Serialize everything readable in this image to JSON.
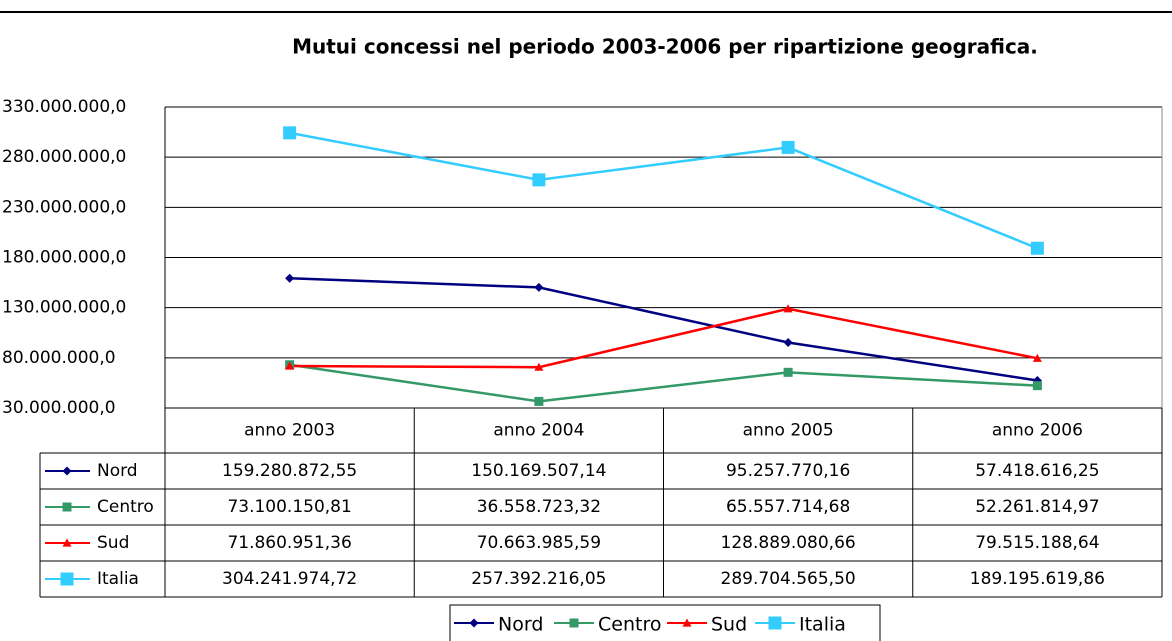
{
  "chart_data": {
    "type": "line",
    "title": "Mutui concessi nel periodo 2003-2006 per ripartizione geografica.",
    "categories": [
      "anno 2003",
      "anno 2004",
      "anno 2005",
      "anno 2006"
    ],
    "series": [
      {
        "name": "Nord",
        "color": "#000080",
        "marker": "diamond",
        "values": [
          159280872.55,
          150169507.14,
          95257770.16,
          57418616.25
        ],
        "value_labels": [
          "159.280.872,55",
          "150.169.507,14",
          "95.257.770,16",
          "57.418.616,25"
        ]
      },
      {
        "name": "Centro",
        "color": "#339966",
        "marker": "square",
        "values": [
          73100150.81,
          36558723.32,
          65557714.68,
          52261814.97
        ],
        "value_labels": [
          "73.100.150,81",
          "36.558.723,32",
          "65.557.714,68",
          "52.261.814,97"
        ]
      },
      {
        "name": "Sud",
        "color": "#ff0000",
        "marker": "triangle",
        "values": [
          71860951.36,
          70663985.59,
          128889080.66,
          79515188.64
        ],
        "value_labels": [
          "71.860.951,36",
          "70.663.985,59",
          "128.889.080,66",
          "79.515.188,64"
        ]
      },
      {
        "name": "Italia",
        "color": "#33ccff",
        "marker": "square",
        "values": [
          304241974.72,
          257392216.05,
          289704565.5,
          189195619.86
        ],
        "value_labels": [
          "304.241.974,72",
          "257.392.216,05",
          "289.704.565,50",
          "189.195.619,86"
        ]
      }
    ],
    "ylim": [
      30000000,
      330000000
    ],
    "yticks": [
      {
        "value": 30000000,
        "label": "30.000.000,0"
      },
      {
        "value": 80000000,
        "label": "80.000.000,0"
      },
      {
        "value": 130000000,
        "label": "130.000.000,0"
      },
      {
        "value": 180000000,
        "label": "180.000.000,0"
      },
      {
        "value": 230000000,
        "label": "230.000.000,0"
      },
      {
        "value": 280000000,
        "label": "280.000.000,0"
      },
      {
        "value": 330000000,
        "label": "330.000.000,0"
      }
    ],
    "grid": true,
    "legend": "bottom"
  }
}
